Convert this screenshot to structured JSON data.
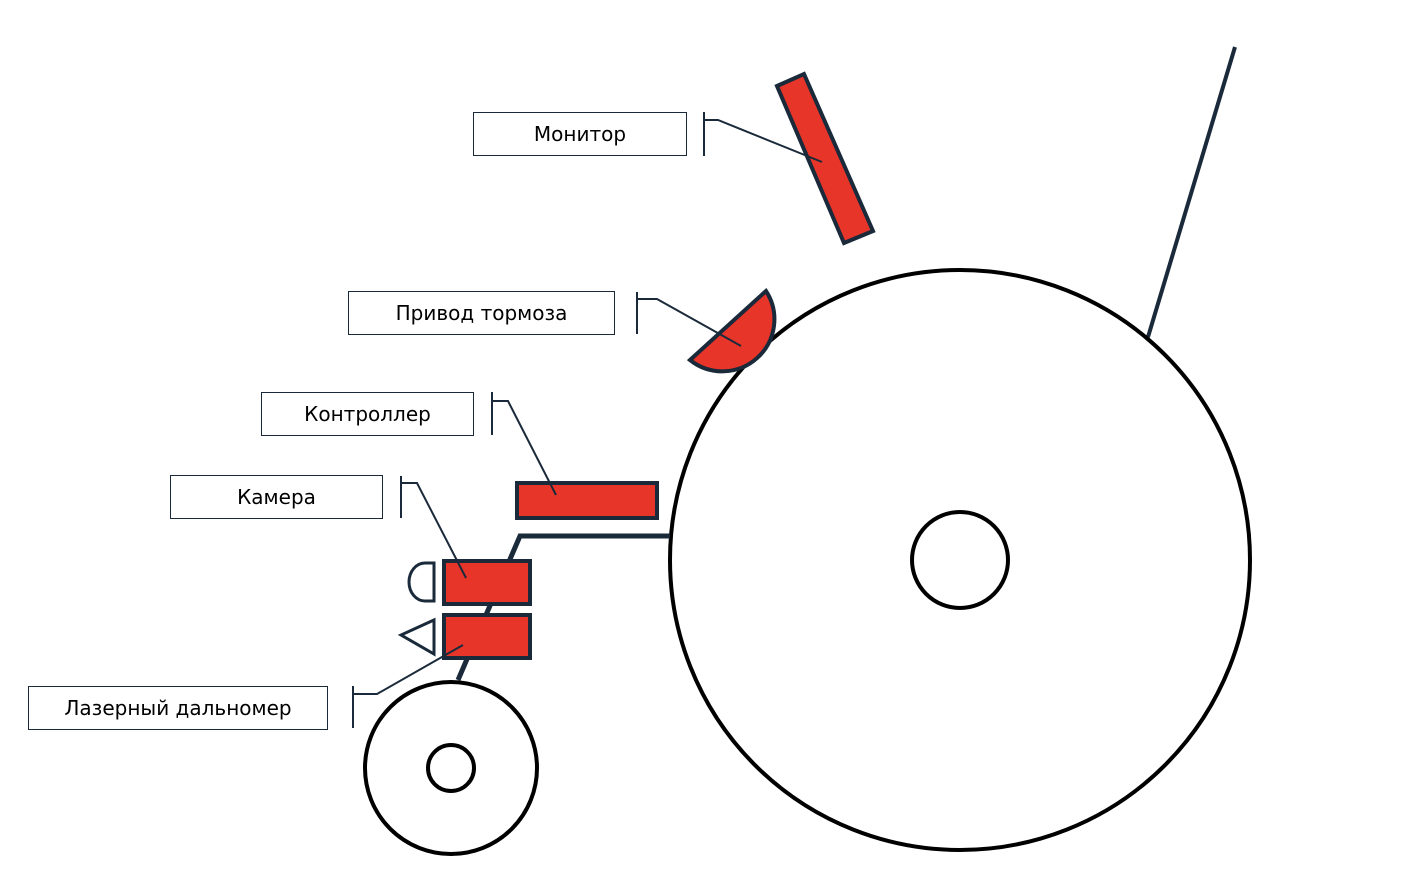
{
  "labels": {
    "monitor": "Монитор",
    "brake_drive": "Привод тормоза",
    "controller": "Контроллер",
    "camera": "Камера",
    "laser_rangefinder": "Лазерный дальномер"
  },
  "colors": {
    "component_fill": "#e8352a",
    "stroke": "#1a2a3a",
    "line": "#000000",
    "background": "#ffffff"
  }
}
